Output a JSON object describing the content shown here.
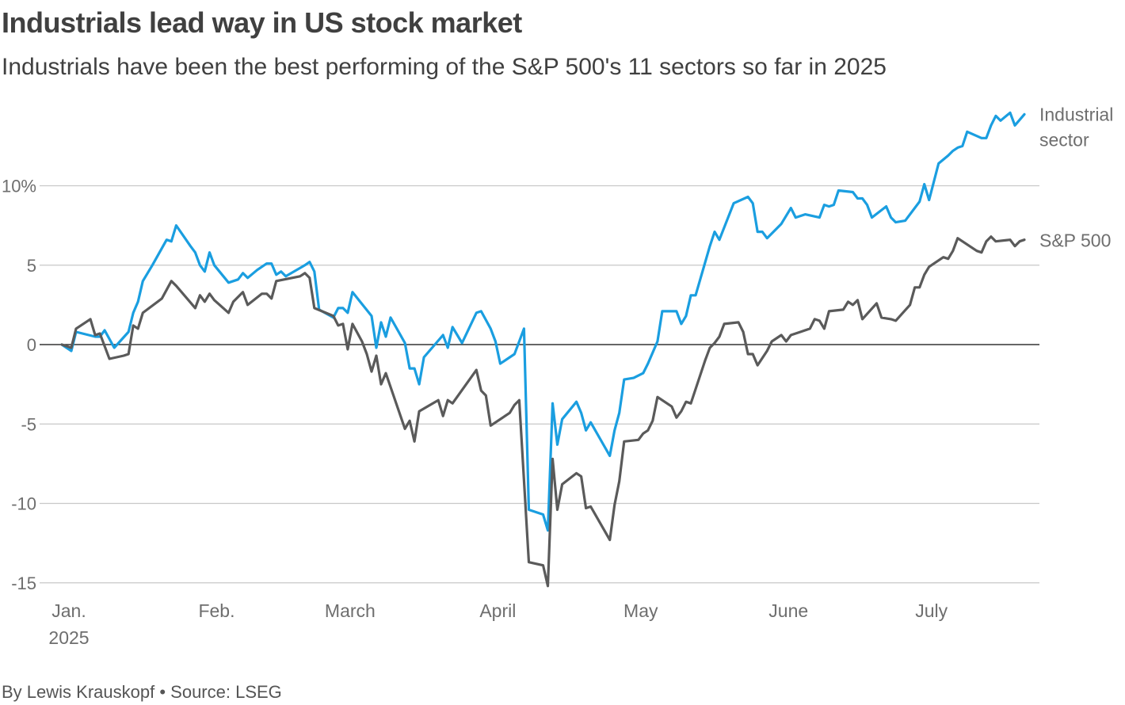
{
  "title": "Industrials lead way in US stock market",
  "subtitle": "Industrials have been the best performing of the S&P 500's 11 sectors so far in 2025",
  "footer": {
    "byline": "By Lewis Krauskopf",
    "separator": "•",
    "source": "Source: LSEG"
  },
  "colors": {
    "industrial": "#1a9ee0",
    "sp500": "#5a5a5a",
    "grid": "#c8c8c8",
    "zero_line": "#333333"
  },
  "chart_data": {
    "type": "line",
    "xlim": [
      "2025-01-01",
      "2025-07-22"
    ],
    "ylim": [
      -15,
      14.5
    ],
    "grid": true,
    "y_ticks": [
      {
        "value": 10,
        "label": "10%"
      },
      {
        "value": 5,
        "label": "5"
      },
      {
        "value": 0,
        "label": "0"
      },
      {
        "value": -5,
        "label": "-5"
      },
      {
        "value": -10,
        "label": "-10"
      },
      {
        "value": -15,
        "label": "-15"
      }
    ],
    "x_ticks": [
      {
        "date": "2025-01-01",
        "label": "Jan.",
        "sublabel": "2025"
      },
      {
        "date": "2025-02-01",
        "label": "Feb."
      },
      {
        "date": "2025-03-01",
        "label": "March"
      },
      {
        "date": "2025-04-01",
        "label": "April"
      },
      {
        "date": "2025-05-01",
        "label": "May"
      },
      {
        "date": "2025-06-01",
        "label": "June"
      },
      {
        "date": "2025-07-01",
        "label": "July"
      }
    ],
    "series": [
      {
        "name": "Industrial",
        "name_line2": "sector",
        "color": "#1a9ee0",
        "points": [
          [
            "2025-01-01",
            0
          ],
          [
            "2025-01-03",
            -0.4
          ],
          [
            "2025-01-04",
            0.8
          ],
          [
            "2025-01-08",
            0.5
          ],
          [
            "2025-01-09",
            0.5
          ],
          [
            "2025-01-10",
            0.9
          ],
          [
            "2025-01-12",
            -0.2
          ],
          [
            "2025-01-15",
            0.8
          ],
          [
            "2025-01-16",
            2.0
          ],
          [
            "2025-01-17",
            2.7
          ],
          [
            "2025-01-18",
            4.0
          ],
          [
            "2025-01-20",
            5.0
          ],
          [
            "2025-01-23",
            6.6
          ],
          [
            "2025-01-24",
            6.5
          ],
          [
            "2025-01-25",
            7.5
          ],
          [
            "2025-01-28",
            6.2
          ],
          [
            "2025-01-29",
            5.8
          ],
          [
            "2025-01-30",
            5.0
          ],
          [
            "2025-01-31",
            4.6
          ],
          [
            "2025-02-01",
            5.8
          ],
          [
            "2025-02-02",
            5.0
          ],
          [
            "2025-02-05",
            3.9
          ],
          [
            "2025-02-07",
            4.1
          ],
          [
            "2025-02-08",
            4.5
          ],
          [
            "2025-02-09",
            4.2
          ],
          [
            "2025-02-11",
            4.7
          ],
          [
            "2025-02-13",
            5.1
          ],
          [
            "2025-02-14",
            5.1
          ],
          [
            "2025-02-15",
            4.4
          ],
          [
            "2025-02-16",
            4.6
          ],
          [
            "2025-02-17",
            4.3
          ],
          [
            "2025-02-21",
            5.0
          ],
          [
            "2025-02-22",
            5.2
          ],
          [
            "2025-02-23",
            4.6
          ],
          [
            "2025-02-24",
            2.2
          ],
          [
            "2025-02-27",
            1.7
          ],
          [
            "2025-02-28",
            2.3
          ],
          [
            "2025-03-01",
            2.3
          ],
          [
            "2025-03-02",
            2.0
          ],
          [
            "2025-03-03",
            3.3
          ],
          [
            "2025-03-07",
            1.8
          ],
          [
            "2025-03-08",
            -0.2
          ],
          [
            "2025-03-09",
            1.4
          ],
          [
            "2025-03-10",
            0.5
          ],
          [
            "2025-03-11",
            1.7
          ],
          [
            "2025-03-14",
            0.1
          ],
          [
            "2025-03-15",
            -1.5
          ],
          [
            "2025-03-16",
            -1.5
          ],
          [
            "2025-03-17",
            -2.5
          ],
          [
            "2025-03-18",
            -0.8
          ],
          [
            "2025-03-22",
            0.6
          ],
          [
            "2025-03-23",
            -0.2
          ],
          [
            "2025-03-24",
            1.1
          ],
          [
            "2025-03-26",
            0.1
          ],
          [
            "2025-03-29",
            2.0
          ],
          [
            "2025-03-30",
            2.1
          ],
          [
            "2025-04-01",
            1.0
          ],
          [
            "2025-04-02",
            0.2
          ],
          [
            "2025-04-03",
            -1.2
          ],
          [
            "2025-04-06",
            -0.6
          ],
          [
            "2025-04-08",
            1.0
          ],
          [
            "2025-04-09",
            -10.4
          ],
          [
            "2025-04-12",
            -10.7
          ],
          [
            "2025-04-13",
            -11.7
          ],
          [
            "2025-04-14",
            -3.7
          ],
          [
            "2025-04-15",
            -6.3
          ],
          [
            "2025-04-16",
            -4.7
          ],
          [
            "2025-04-19",
            -3.6
          ],
          [
            "2025-04-20",
            -4.3
          ],
          [
            "2025-04-21",
            -5.4
          ],
          [
            "2025-04-22",
            -4.9
          ],
          [
            "2025-04-26",
            -7.0
          ],
          [
            "2025-04-27",
            -5.4
          ],
          [
            "2025-04-28",
            -4.3
          ],
          [
            "2025-04-29",
            -2.2
          ],
          [
            "2025-05-01",
            -2.1
          ],
          [
            "2025-05-03",
            -1.8
          ],
          [
            "2025-05-04",
            -1.2
          ],
          [
            "2025-05-06",
            0.2
          ],
          [
            "2025-05-07",
            2.1
          ],
          [
            "2025-05-10",
            2.1
          ],
          [
            "2025-05-11",
            1.3
          ],
          [
            "2025-05-12",
            1.8
          ],
          [
            "2025-05-13",
            3.1
          ],
          [
            "2025-05-14",
            3.1
          ],
          [
            "2025-05-17",
            6.2
          ],
          [
            "2025-05-18",
            7.1
          ],
          [
            "2025-05-19",
            6.6
          ],
          [
            "2025-05-22",
            8.9
          ],
          [
            "2025-05-25",
            9.3
          ],
          [
            "2025-05-26",
            8.9
          ],
          [
            "2025-05-27",
            7.1
          ],
          [
            "2025-05-28",
            7.1
          ],
          [
            "2025-05-29",
            6.7
          ],
          [
            "2025-06-01",
            7.6
          ],
          [
            "2025-06-03",
            8.6
          ],
          [
            "2025-06-04",
            8.0
          ],
          [
            "2025-06-06",
            8.2
          ],
          [
            "2025-06-09",
            8.0
          ],
          [
            "2025-06-10",
            8.8
          ],
          [
            "2025-06-11",
            8.7
          ],
          [
            "2025-06-12",
            8.8
          ],
          [
            "2025-06-13",
            9.7
          ],
          [
            "2025-06-16",
            9.6
          ],
          [
            "2025-06-17",
            9.2
          ],
          [
            "2025-06-18",
            9.2
          ],
          [
            "2025-06-19",
            8.8
          ],
          [
            "2025-06-20",
            8.0
          ],
          [
            "2025-06-23",
            8.7
          ],
          [
            "2025-06-24",
            8.0
          ],
          [
            "2025-06-25",
            7.7
          ],
          [
            "2025-06-27",
            7.8
          ],
          [
            "2025-06-30",
            9.0
          ],
          [
            "2025-07-01",
            10.1
          ],
          [
            "2025-07-02",
            9.1
          ],
          [
            "2025-07-04",
            11.4
          ],
          [
            "2025-07-06",
            11.9
          ],
          [
            "2025-07-07",
            12.2
          ],
          [
            "2025-07-08",
            12.4
          ],
          [
            "2025-07-09",
            12.5
          ],
          [
            "2025-07-10",
            13.4
          ],
          [
            "2025-07-13",
            13.0
          ],
          [
            "2025-07-14",
            13.0
          ],
          [
            "2025-07-15",
            13.8
          ],
          [
            "2025-07-16",
            14.4
          ],
          [
            "2025-07-17",
            14.1
          ],
          [
            "2025-07-19",
            14.6
          ],
          [
            "2025-07-20",
            13.8
          ],
          [
            "2025-07-22",
            14.5
          ]
        ]
      },
      {
        "name": "S&P 500",
        "color": "#5a5a5a",
        "points": [
          [
            "2025-01-01",
            0
          ],
          [
            "2025-01-03",
            -0.2
          ],
          [
            "2025-01-04",
            1.0
          ],
          [
            "2025-01-07",
            1.6
          ],
          [
            "2025-01-08",
            0.6
          ],
          [
            "2025-01-09",
            0.7
          ],
          [
            "2025-01-11",
            -0.9
          ],
          [
            "2025-01-14",
            -0.7
          ],
          [
            "2025-01-15",
            -0.6
          ],
          [
            "2025-01-16",
            1.2
          ],
          [
            "2025-01-17",
            1.0
          ],
          [
            "2025-01-18",
            2.0
          ],
          [
            "2025-01-22",
            2.9
          ],
          [
            "2025-01-24",
            4.0
          ],
          [
            "2025-01-25",
            3.7
          ],
          [
            "2025-01-29",
            2.3
          ],
          [
            "2025-01-30",
            3.1
          ],
          [
            "2025-01-31",
            2.7
          ],
          [
            "2025-02-01",
            3.2
          ],
          [
            "2025-02-02",
            2.8
          ],
          [
            "2025-02-05",
            2.0
          ],
          [
            "2025-02-06",
            2.7
          ],
          [
            "2025-02-08",
            3.3
          ],
          [
            "2025-02-09",
            2.5
          ],
          [
            "2025-02-12",
            3.2
          ],
          [
            "2025-02-13",
            3.2
          ],
          [
            "2025-02-14",
            2.9
          ],
          [
            "2025-02-15",
            4.0
          ],
          [
            "2025-02-20",
            4.3
          ],
          [
            "2025-02-21",
            4.5
          ],
          [
            "2025-02-22",
            4.2
          ],
          [
            "2025-02-23",
            2.3
          ],
          [
            "2025-02-27",
            1.8
          ],
          [
            "2025-02-28",
            1.2
          ],
          [
            "2025-03-01",
            1.3
          ],
          [
            "2025-03-02",
            -0.3
          ],
          [
            "2025-03-03",
            1.3
          ],
          [
            "2025-03-05",
            0.2
          ],
          [
            "2025-03-06",
            -0.6
          ],
          [
            "2025-03-07",
            -1.7
          ],
          [
            "2025-03-08",
            -0.7
          ],
          [
            "2025-03-09",
            -2.5
          ],
          [
            "2025-03-10",
            -1.8
          ],
          [
            "2025-03-14",
            -5.3
          ],
          [
            "2025-03-15",
            -4.8
          ],
          [
            "2025-03-16",
            -6.1
          ],
          [
            "2025-03-17",
            -4.2
          ],
          [
            "2025-03-21",
            -3.5
          ],
          [
            "2025-03-22",
            -4.5
          ],
          [
            "2025-03-23",
            -3.5
          ],
          [
            "2025-03-24",
            -3.7
          ],
          [
            "2025-03-29",
            -1.6
          ],
          [
            "2025-03-30",
            -2.9
          ],
          [
            "2025-03-31",
            -3.2
          ],
          [
            "2025-04-01",
            -5.1
          ],
          [
            "2025-04-05",
            -4.3
          ],
          [
            "2025-04-06",
            -3.8
          ],
          [
            "2025-04-07",
            -3.5
          ],
          [
            "2025-04-09",
            -13.7
          ],
          [
            "2025-04-12",
            -13.9
          ],
          [
            "2025-04-13",
            -15.2
          ],
          [
            "2025-04-14",
            -7.2
          ],
          [
            "2025-04-15",
            -10.4
          ],
          [
            "2025-04-16",
            -8.8
          ],
          [
            "2025-04-19",
            -8.1
          ],
          [
            "2025-04-20",
            -8.3
          ],
          [
            "2025-04-21",
            -10.3
          ],
          [
            "2025-04-22",
            -10.2
          ],
          [
            "2025-04-26",
            -12.3
          ],
          [
            "2025-04-27",
            -10.1
          ],
          [
            "2025-04-28",
            -8.6
          ],
          [
            "2025-04-29",
            -6.1
          ],
          [
            "2025-05-02",
            -6.0
          ],
          [
            "2025-05-03",
            -5.6
          ],
          [
            "2025-05-04",
            -5.4
          ],
          [
            "2025-05-05",
            -4.8
          ],
          [
            "2025-05-06",
            -3.3
          ],
          [
            "2025-05-09",
            -3.9
          ],
          [
            "2025-05-10",
            -4.6
          ],
          [
            "2025-05-11",
            -4.2
          ],
          [
            "2025-05-12",
            -3.6
          ],
          [
            "2025-05-13",
            -3.7
          ],
          [
            "2025-05-16",
            -1.0
          ],
          [
            "2025-05-17",
            -0.2
          ],
          [
            "2025-05-18",
            0.1
          ],
          [
            "2025-05-19",
            0.5
          ],
          [
            "2025-05-20",
            1.3
          ],
          [
            "2025-05-23",
            1.4
          ],
          [
            "2025-05-24",
            0.8
          ],
          [
            "2025-05-25",
            -0.6
          ],
          [
            "2025-05-26",
            -0.6
          ],
          [
            "2025-05-27",
            -1.3
          ],
          [
            "2025-05-29",
            -0.4
          ],
          [
            "2025-05-30",
            0.2
          ],
          [
            "2025-06-01",
            0.6
          ],
          [
            "2025-06-02",
            0.2
          ],
          [
            "2025-06-03",
            0.6
          ],
          [
            "2025-06-05",
            0.8
          ],
          [
            "2025-06-07",
            1.0
          ],
          [
            "2025-06-08",
            1.6
          ],
          [
            "2025-06-09",
            1.5
          ],
          [
            "2025-06-10",
            1.0
          ],
          [
            "2025-06-11",
            2.1
          ],
          [
            "2025-06-14",
            2.2
          ],
          [
            "2025-06-15",
            2.7
          ],
          [
            "2025-06-16",
            2.5
          ],
          [
            "2025-06-17",
            2.8
          ],
          [
            "2025-06-18",
            1.6
          ],
          [
            "2025-06-21",
            2.6
          ],
          [
            "2025-06-22",
            1.7
          ],
          [
            "2025-06-24",
            1.6
          ],
          [
            "2025-06-25",
            1.5
          ],
          [
            "2025-06-28",
            2.5
          ],
          [
            "2025-06-29",
            3.6
          ],
          [
            "2025-06-30",
            3.6
          ],
          [
            "2025-07-01",
            4.4
          ],
          [
            "2025-07-02",
            4.9
          ],
          [
            "2025-07-05",
            5.5
          ],
          [
            "2025-07-06",
            5.4
          ],
          [
            "2025-07-07",
            5.9
          ],
          [
            "2025-07-08",
            6.7
          ],
          [
            "2025-07-12",
            5.9
          ],
          [
            "2025-07-13",
            5.8
          ],
          [
            "2025-07-14",
            6.5
          ],
          [
            "2025-07-15",
            6.8
          ],
          [
            "2025-07-16",
            6.5
          ],
          [
            "2025-07-19",
            6.6
          ],
          [
            "2025-07-20",
            6.2
          ],
          [
            "2025-07-21",
            6.5
          ],
          [
            "2025-07-22",
            6.6
          ]
        ]
      }
    ]
  }
}
